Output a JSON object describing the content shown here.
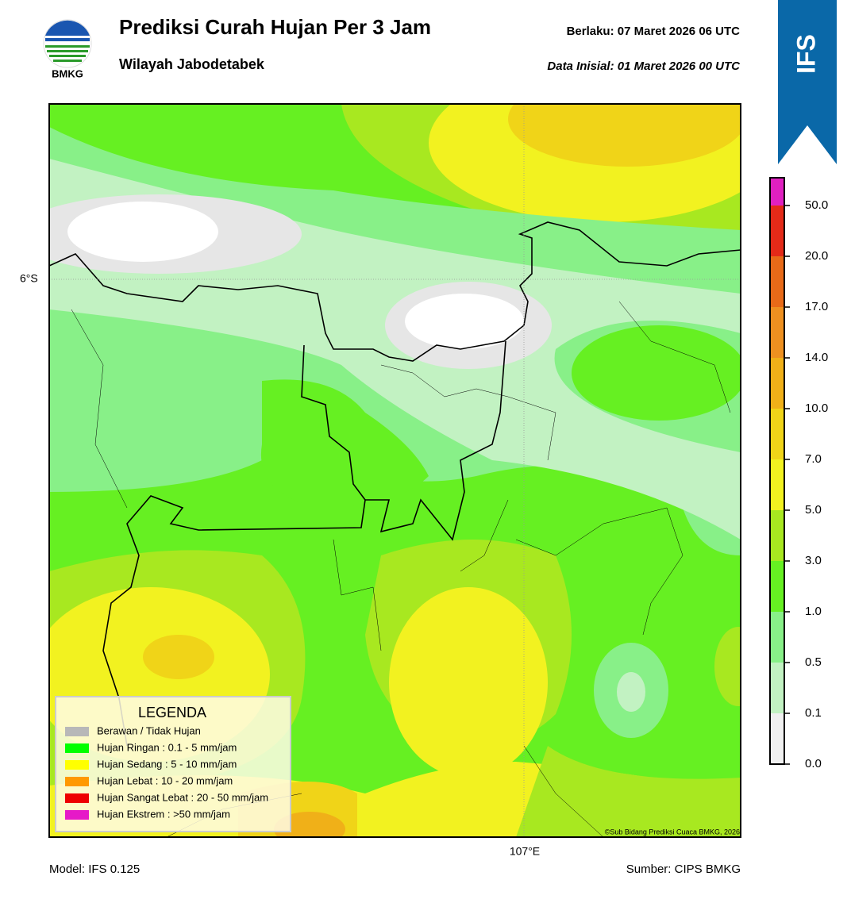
{
  "header": {
    "logo_text": "BMKG",
    "title": "Prediksi Curah Hujan Per 3 Jam",
    "subtitle": "Wilayah Jabodetabek",
    "valid": "Berlaku: 07 Maret 2026 06 UTC",
    "initial": "Data Inisial: 01 Maret 2026 00 UTC",
    "badge": "IFS"
  },
  "map": {
    "lat_label": "6°S",
    "lon_label": "107°E",
    "credit": "©Sub Bidang Prediksi Cuaca BMKG, 2026",
    "legend": {
      "title": "LEGENDA",
      "items": [
        {
          "label": "Berawan / Tidak Hujan",
          "color": "#b8b8b8"
        },
        {
          "label": "Hujan Ringan : 0.1 - 5 mm/jam",
          "color": "#00ff00"
        },
        {
          "label": "Hujan Sedang : 5 - 10 mm/jam",
          "color": "#ffff00"
        },
        {
          "label": "Hujan Lebat : 10 - 20 mm/jam",
          "color": "#ff9900"
        },
        {
          "label": "Hujan Sangat Lebat : 20 - 50 mm/jam",
          "color": "#ee0000"
        },
        {
          "label": "Hujan Ekstrem : >50 mm/jam",
          "color": "#e619c8"
        }
      ]
    }
  },
  "colorbar": {
    "ticks": [
      {
        "value": 0,
        "label": "0.0"
      },
      0.1,
      0.5,
      {
        "value": 1,
        "label": "1.0"
      },
      {
        "value": 3,
        "label": "3.0"
      },
      {
        "value": 5,
        "label": "5.0"
      },
      {
        "value": 7,
        "label": "7.0"
      },
      {
        "value": 10,
        "label": "10.0"
      },
      {
        "value": 14,
        "label": "14.0"
      },
      {
        "value": 17,
        "label": "17.0"
      },
      {
        "value": 20,
        "label": "20.0"
      },
      {
        "value": 50,
        "label": "50.0"
      }
    ],
    "colors": [
      "#f0f0f0",
      "#c2f2c2",
      "#88f088",
      "#66f022",
      "#a8e820",
      "#f2f220",
      "#f0d418",
      "#f0b018",
      "#ee9020",
      "#e86a18",
      "#e42a18",
      "#e020c0"
    ]
  },
  "footer": {
    "model": "Model: IFS 0.125",
    "source": "Sumber: CIPS BMKG"
  }
}
